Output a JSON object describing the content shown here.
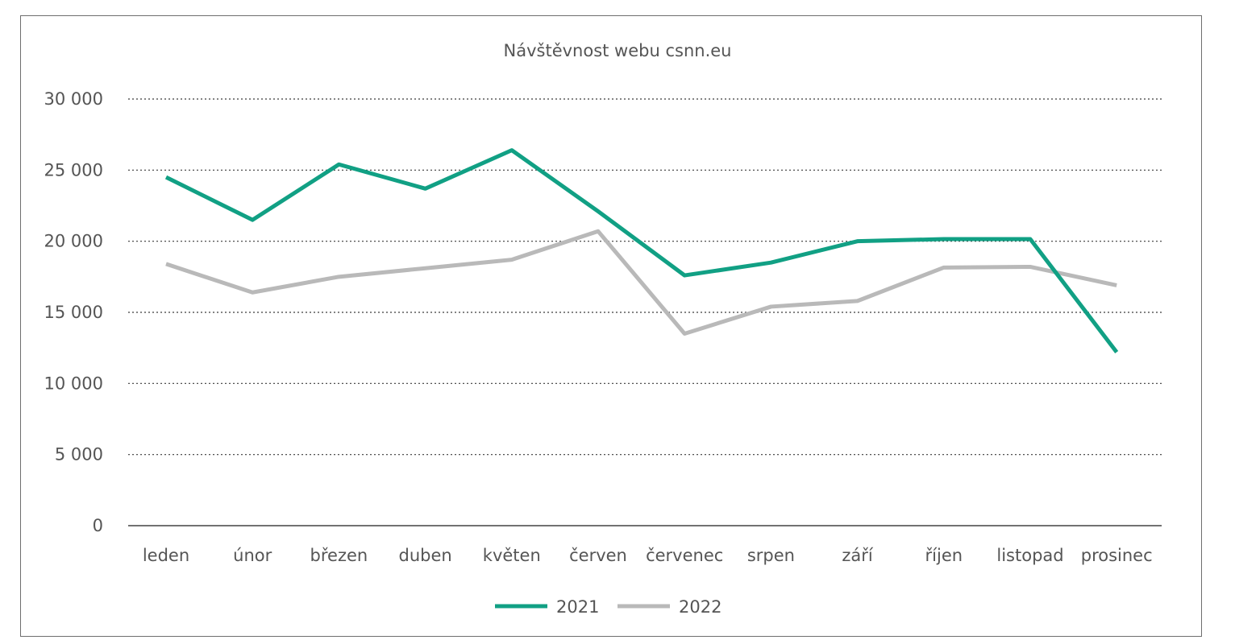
{
  "chart_data": {
    "type": "line",
    "title": "Návštěvnost webu csnn.eu",
    "xlabel": "",
    "ylabel": "",
    "categories": [
      "leden",
      "únor",
      "březen",
      "duben",
      "květen",
      "červen",
      "červenec",
      "srpen",
      "září",
      "říjen",
      "listopad",
      "prosinec"
    ],
    "ylim": [
      0,
      30000
    ],
    "yticks": [
      {
        "value": 0,
        "label": "0"
      },
      {
        "value": 5000,
        "label": "5 000"
      },
      {
        "value": 10000,
        "label": "10 000"
      },
      {
        "value": 15000,
        "label": "15 000"
      },
      {
        "value": 20000,
        "label": "20 000"
      },
      {
        "value": 25000,
        "label": "25 000"
      },
      {
        "value": 30000,
        "label": "30 000"
      }
    ],
    "grid": "horizontal-dotted",
    "legend_position": "bottom",
    "series": [
      {
        "name": "2021",
        "color": "#11a084",
        "values": [
          24500,
          21500,
          25400,
          23700,
          26400,
          22100,
          17600,
          18500,
          20000,
          20150,
          20150,
          12200
        ]
      },
      {
        "name": "2022",
        "color": "#b9b9b9",
        "values": [
          18400,
          16400,
          17500,
          18100,
          18700,
          20700,
          13500,
          15400,
          15800,
          18150,
          18200,
          16900
        ]
      }
    ]
  }
}
